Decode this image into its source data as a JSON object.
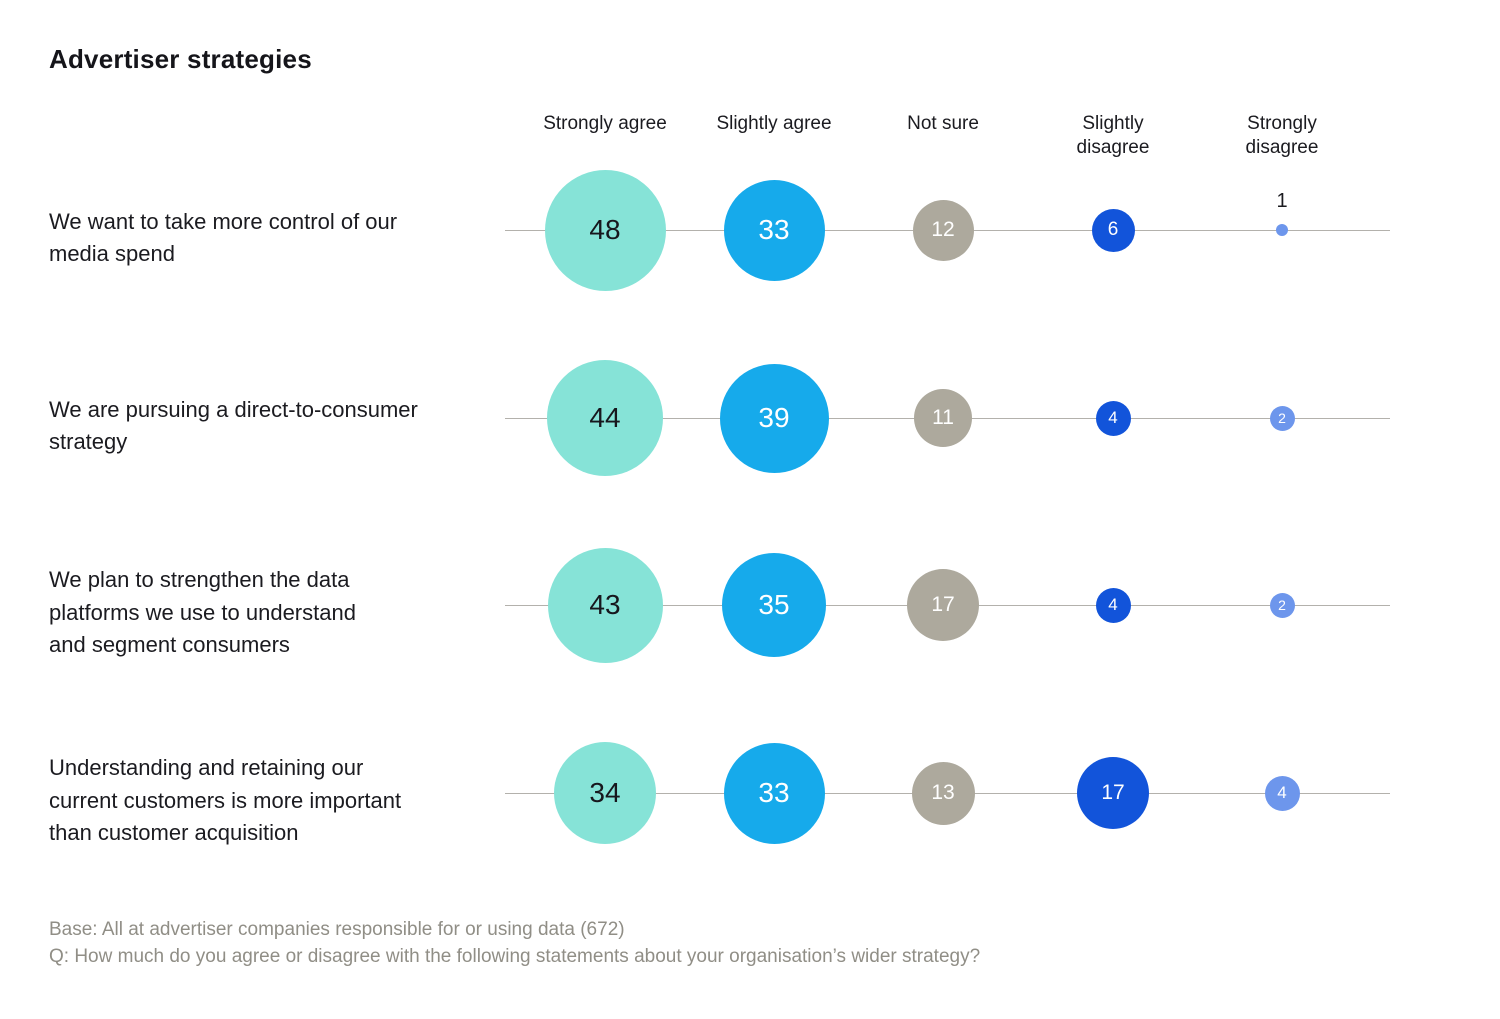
{
  "title": "Advertiser strategies",
  "colors": {
    "category_fills": [
      "#86E3D7",
      "#16AAEB",
      "#ADA99D",
      "#1254DA",
      "#6D96EC"
    ],
    "bubble_text_dark": "#17171d",
    "bubble_text_light": "#ffffff",
    "axis_line": "#b3b1ac",
    "heading_text": "#1b1b20",
    "footnote_text": "#908e86"
  },
  "chart_data": {
    "type": "bubble",
    "sizing": "area-proportional",
    "categories": [
      "Strongly agree",
      "Slightly agree",
      "Not sure",
      "Slightly disagree",
      "Strongly disagree"
    ],
    "rows": [
      {
        "label": "We want to take more control of our\nmedia spend",
        "values": [
          48,
          33,
          12,
          6,
          1
        ]
      },
      {
        "label": "We are pursuing a direct-to-consumer\nstrategy",
        "values": [
          44,
          39,
          11,
          4,
          2
        ]
      },
      {
        "label": "We plan to strengthen the data\nplatforms we use to understand\nand segment consumers",
        "values": [
          43,
          35,
          17,
          4,
          2
        ]
      },
      {
        "label": "Understanding and retaining our\ncurrent customers is more important\nthan customer acquisition",
        "values": [
          34,
          33,
          13,
          17,
          4
        ]
      }
    ]
  },
  "footer": {
    "base": "Base: All at advertiser companies responsible for or using data (672)",
    "question": "Q: How much do you agree or disagree with the following statements about your organisation’s wider strategy?"
  }
}
